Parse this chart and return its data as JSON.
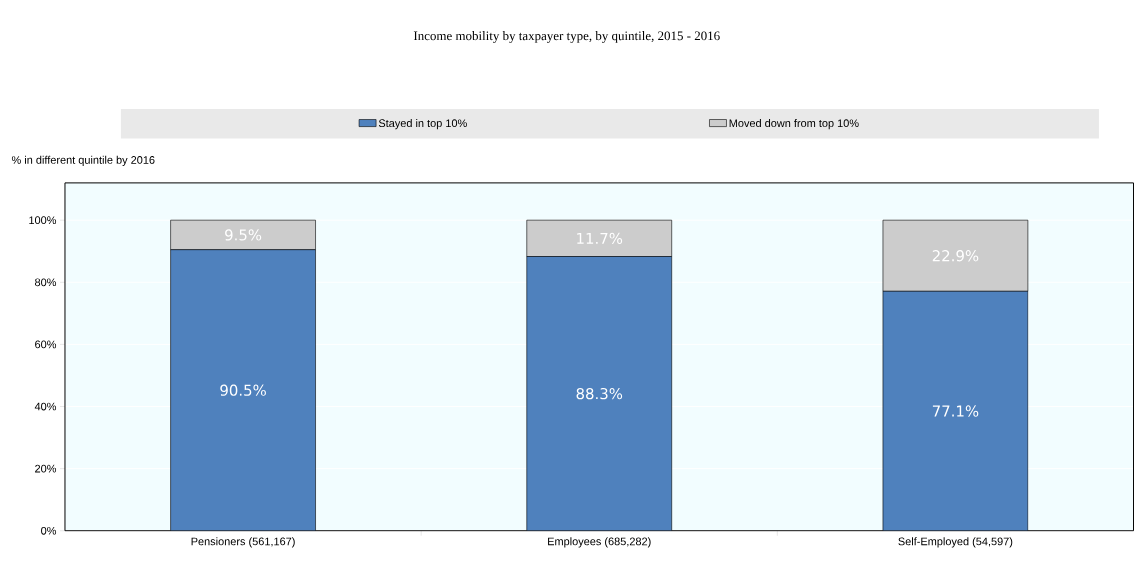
{
  "chart_data": {
    "type": "bar",
    "title": "Income mobility by taxpayer type, by quintile, 2015 - 2016",
    "ylabel": "% in different quintile by 2016",
    "categories": [
      "Pensioners (561,167)",
      "Employees (685,282)",
      "Self-Employed (54,597)"
    ],
    "series": [
      {
        "name": "Stayed in top 10%",
        "color": "#4f81bd",
        "values": [
          90.5,
          88.3,
          77.1
        ],
        "value_labels": [
          "90.5%",
          "88.3%",
          "77.1%"
        ]
      },
      {
        "name": "Moved down from top 10%",
        "color": "#cccccc",
        "values": [
          9.5,
          11.7,
          22.9
        ],
        "value_labels": [
          "9.5%",
          "11.7%",
          "22.9%"
        ]
      }
    ],
    "stacked": true,
    "ylim": [
      0,
      112
    ],
    "yticks": [
      {
        "value": 0,
        "label": "0%"
      },
      {
        "value": 20,
        "label": "20%"
      },
      {
        "value": 40,
        "label": "40%"
      },
      {
        "value": 60,
        "label": "60%"
      },
      {
        "value": 80,
        "label": "80%"
      },
      {
        "value": 100,
        "label": "100%"
      }
    ],
    "grid": "y",
    "legend": "top"
  }
}
